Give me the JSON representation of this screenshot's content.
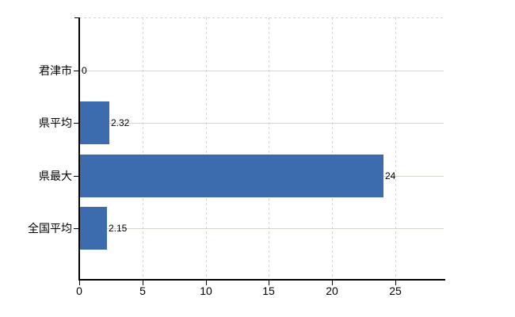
{
  "chart_data": {
    "type": "bar",
    "orientation": "horizontal",
    "title": "",
    "categories": [
      "君津市",
      "県平均",
      "県最大",
      "全国平均"
    ],
    "values": [
      0,
      2.32,
      24,
      2.15
    ],
    "value_labels": [
      "0",
      "2.32",
      "24",
      "2.15"
    ],
    "x_ticks": [
      0,
      5,
      10,
      15,
      20,
      25
    ],
    "x_tick_labels": [
      "0",
      "5",
      "10",
      "15",
      "20",
      "25"
    ],
    "xlim": [
      0,
      28.8
    ],
    "grid": {
      "horizontal": true,
      "vertical": true
    },
    "legend": "none",
    "axis_lines": [
      "left",
      "bottom"
    ]
  },
  "colors": {
    "bar": "#3c6cae",
    "horizontal_grid": "#cfd6cc",
    "vertical_grid": "#d4d4d8",
    "axis": "#000000",
    "text": "#000000",
    "background": "#ffffff"
  }
}
